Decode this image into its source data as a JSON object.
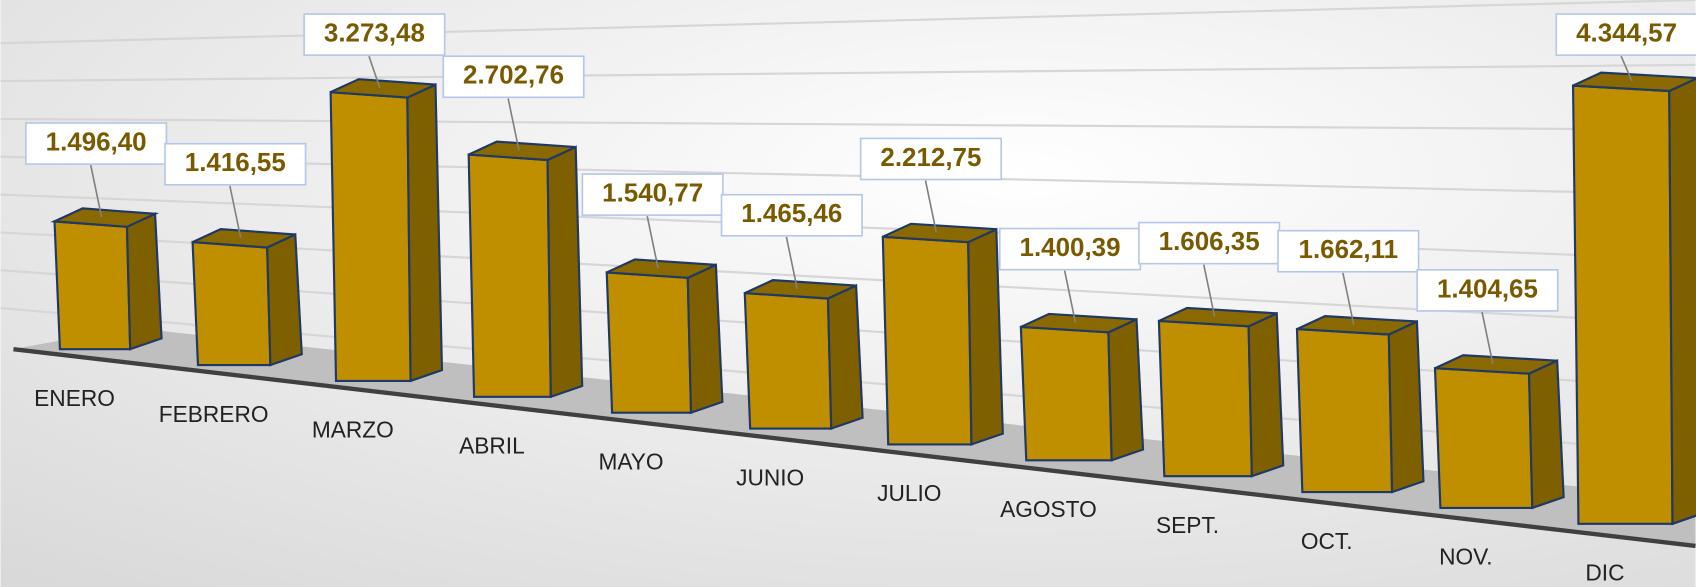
{
  "chart_data": {
    "type": "bar3d",
    "categories": [
      "ENERO",
      "FEBRERO",
      "MARZO",
      "ABRIL",
      "MAYO",
      "JUNIO",
      "JULIO",
      "AGOSTO",
      "SEPT.",
      "OCT.",
      "NOV.",
      "DIC"
    ],
    "values": [
      1496.4,
      1416.55,
      3273.48,
      2702.76,
      1540.77,
      1465.46,
      2212.75,
      1400.39,
      1606.35,
      1662.11,
      1404.65,
      4344.57
    ],
    "value_labels": [
      "1.496,40",
      "1.416,55",
      "3.273,48",
      "2.702,76",
      "1.540,77",
      "1.465,46",
      "2.212,75",
      "1.400,39",
      "1.606,35",
      "1.662,11",
      "1.404,65",
      "4.344,57"
    ],
    "color": "#bf8f00"
  }
}
